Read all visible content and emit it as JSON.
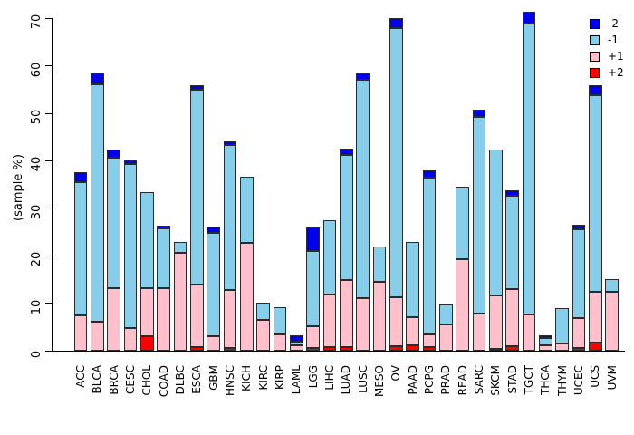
{
  "figure": {
    "background": "#FFFFFF",
    "border_color": "#2b2b2b"
  },
  "chart_data": {
    "type": "bar",
    "stacked": true,
    "title": "",
    "xlabel": "",
    "ylabel": "(sample %)",
    "ylim": [
      0,
      70
    ],
    "yticks": [
      0,
      10,
      20,
      30,
      40,
      50,
      60,
      70
    ],
    "grid": false,
    "legend_position": "top-right",
    "legend_order_top_to_bottom": [
      "-2",
      "-1",
      "+1",
      "+2"
    ],
    "stack_order_bottom_to_top": [
      "+2",
      "+1",
      "-1",
      "-2"
    ],
    "categories": [
      "ACC",
      "BLCA",
      "BRCA",
      "CESC",
      "CHOL",
      "COAD",
      "DLBC",
      "ESCA",
      "GBM",
      "HNSC",
      "KICH",
      "KIRC",
      "KIRP",
      "LAML",
      "LGG",
      "LIHC",
      "LUAD",
      "LUSC",
      "MESO",
      "OV",
      "PAAD",
      "PCPG",
      "PRAD",
      "READ",
      "SARC",
      "SKCM",
      "STAD",
      "TGCT",
      "THCA",
      "THYM",
      "UCEC",
      "UCS",
      "UVM"
    ],
    "series": [
      {
        "name": "-2",
        "color": "#0000EE",
        "values": [
          2.1,
          2.2,
          1.6,
          0.6,
          0,
          0.6,
          0,
          1.0,
          1.4,
          0.7,
          0,
          0,
          0,
          1.3,
          5.0,
          0,
          1.4,
          1.4,
          0,
          2.0,
          0,
          1.5,
          0,
          0,
          1.5,
          0,
          1.1,
          2.5,
          0.6,
          0,
          1.1,
          2.1,
          0
        ]
      },
      {
        "name": "-1",
        "color": "#87CEEB",
        "values": [
          28.1,
          50.1,
          27.5,
          34.6,
          20.4,
          12.6,
          2.2,
          41.0,
          21.8,
          30.7,
          13.8,
          3.7,
          5.7,
          0.9,
          15.8,
          15.6,
          26.4,
          45.9,
          7.4,
          56.7,
          15.9,
          33.1,
          4.2,
          15.3,
          41.5,
          30.7,
          19.7,
          61.3,
          1.5,
          7.4,
          18.6,
          41.4,
          2.6
        ]
      },
      {
        "name": "+1",
        "color": "#FFC0CB",
        "values": [
          7.5,
          6.1,
          13.2,
          4.8,
          10.1,
          13.2,
          20.7,
          13.3,
          3.0,
          12.1,
          22.8,
          6.4,
          3.5,
          1.1,
          4.7,
          11.0,
          14.0,
          11.1,
          14.6,
          10.3,
          5.9,
          2.7,
          5.6,
          19.2,
          7.8,
          11.2,
          12.0,
          7.6,
          1.2,
          1.6,
          6.3,
          10.7,
          12.4
        ]
      },
      {
        "name": "+2",
        "color": "#FF0000",
        "values": [
          0,
          0,
          0,
          0,
          3.0,
          0,
          0,
          0.7,
          0,
          0.6,
          0,
          0,
          0,
          0,
          0.5,
          0.8,
          0.8,
          0,
          0,
          1.0,
          1.1,
          0.7,
          0,
          0,
          0,
          0.4,
          0.9,
          0,
          0,
          0,
          0.6,
          1.7,
          0
        ]
      }
    ]
  }
}
